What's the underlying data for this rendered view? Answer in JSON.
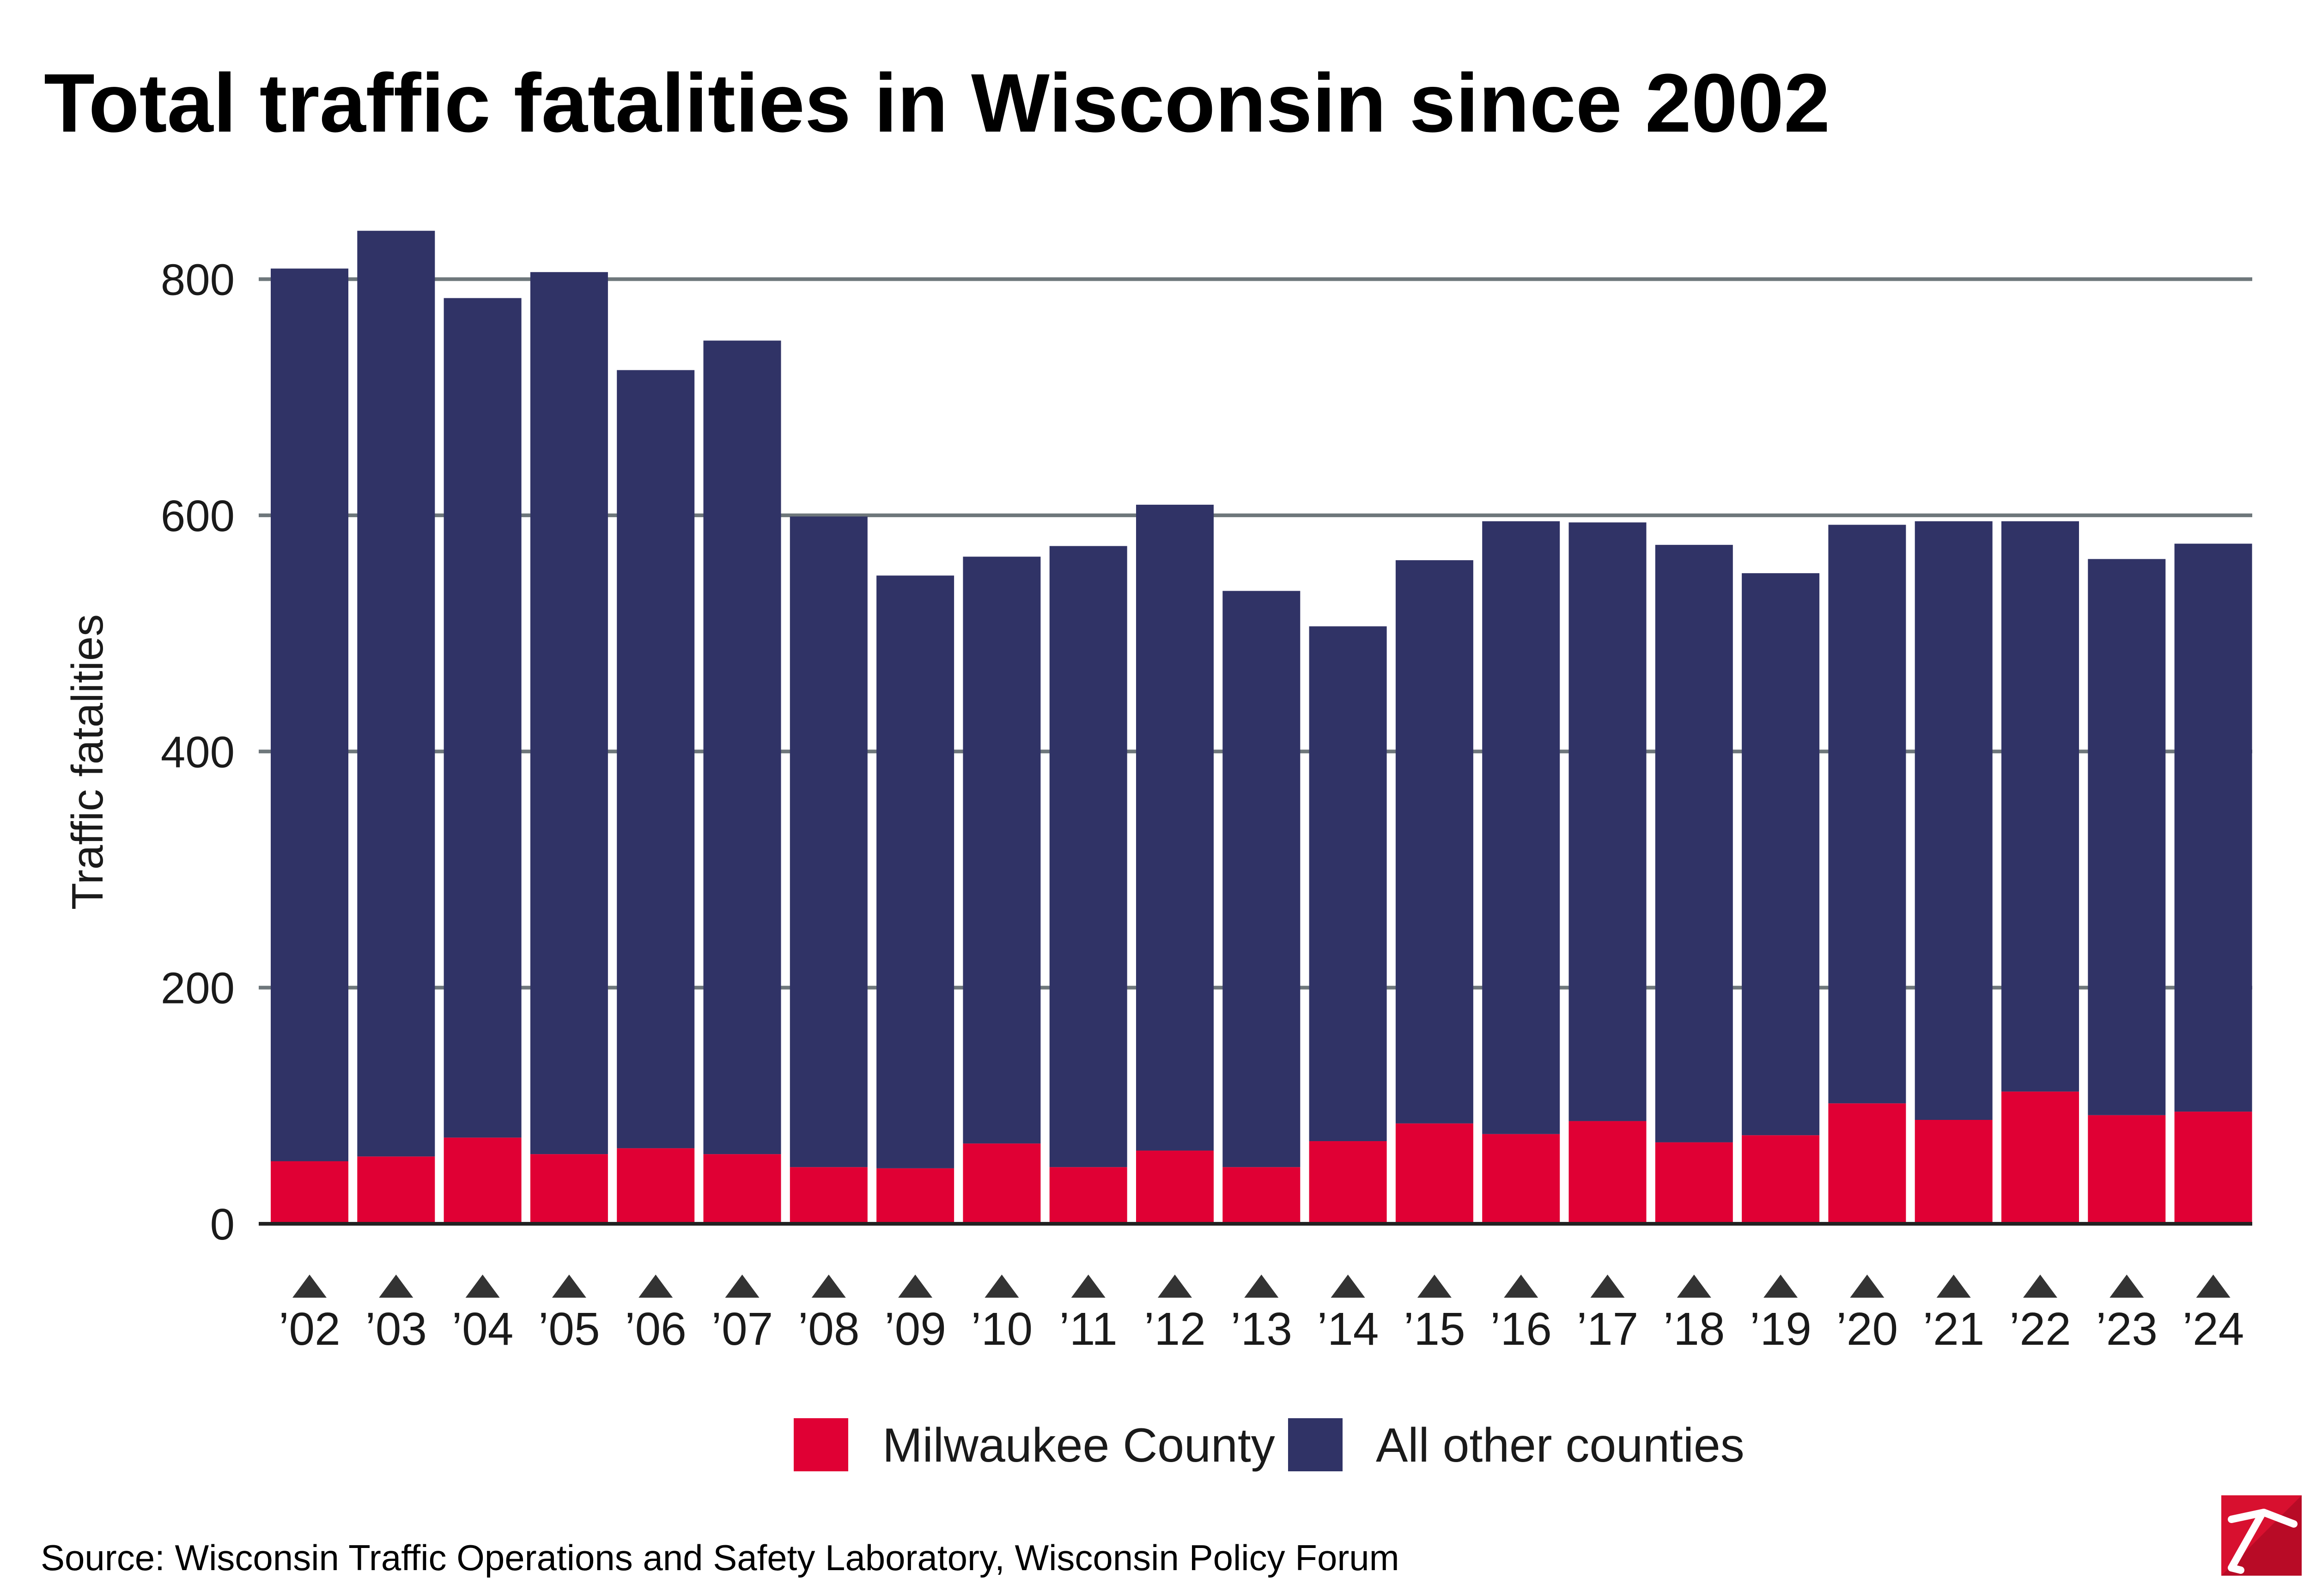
{
  "colors": {
    "milwaukee": "#e00034",
    "other": "#303366",
    "grid": "#6e777b",
    "axis": "#222222",
    "marker": "#333333",
    "logo_bg": "#d8102f"
  },
  "chart_data": {
    "type": "bar",
    "stacked": true,
    "title": "Total traffic fatalities in Wisconsin since 2002",
    "xlabel": "",
    "ylabel": "Traffic fatalities",
    "ylim": [
      0,
      880
    ],
    "yticks": [
      0,
      200,
      400,
      600,
      800
    ],
    "grid": true,
    "legend_position": "bottom",
    "categories": [
      "’02",
      "’03",
      "’04",
      "’05",
      "’06",
      "’07",
      "’08",
      "’09",
      "’10",
      "’11",
      "’12",
      "’13",
      "’14",
      "’15",
      "’16",
      "’17",
      "’18",
      "’19",
      "’20",
      "’21",
      "’22",
      "’23",
      "’24"
    ],
    "series": [
      {
        "name": "Milwaukee County",
        "color_key": "milwaukee",
        "values": [
          53,
          57,
          73,
          59,
          64,
          59,
          48,
          47,
          68,
          48,
          62,
          48,
          70,
          85,
          76,
          87,
          69,
          75,
          102,
          88,
          112,
          92,
          95
        ]
      },
      {
        "name": "All other counties",
        "color_key": "other",
        "values": [
          756,
          784,
          711,
          747,
          659,
          689,
          551,
          502,
          497,
          526,
          547,
          488,
          436,
          477,
          519,
          507,
          506,
          476,
          490,
          507,
          483,
          471,
          481
        ]
      }
    ]
  },
  "source": "Source: Wisconsin Traffic Operations and Safety Laboratory, Wisconsin Policy Forum"
}
